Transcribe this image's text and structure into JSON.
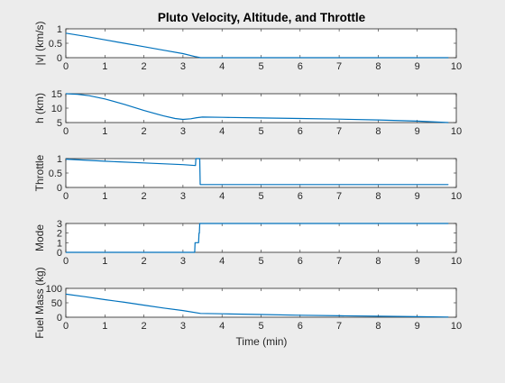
{
  "chart_data": {
    "title": "Pluto Velocity, Altitude, and Throttle",
    "xlabel": "Time (min)",
    "line_color": "#0072BD",
    "grid": false,
    "x_ticks": [
      0,
      1,
      2,
      3,
      4,
      5,
      6,
      7,
      8,
      9,
      10
    ],
    "subplots": [
      {
        "type": "line",
        "ylabel": "|v| (km/s)",
        "xlim": [
          0,
          10
        ],
        "ylim": [
          0,
          1
        ],
        "y_ticks": [
          0,
          0.5,
          1
        ],
        "y_tick_labels": [
          "0",
          "0.5",
          "1"
        ],
        "x": [
          0,
          0.5,
          1,
          1.5,
          2,
          2.5,
          3,
          3.3,
          3.45,
          4,
          5,
          6,
          7,
          8,
          9,
          9.8
        ],
        "y": [
          0.85,
          0.74,
          0.62,
          0.5,
          0.38,
          0.26,
          0.14,
          0.04,
          0.0,
          0.0,
          0.0,
          0.0,
          0.0,
          0.0,
          0.0,
          0.0
        ]
      },
      {
        "type": "line",
        "ylabel": "h (km)",
        "xlim": [
          0,
          10
        ],
        "ylim": [
          5,
          15
        ],
        "y_ticks": [
          5,
          10,
          15
        ],
        "y_tick_labels": [
          "5",
          "10",
          "15"
        ],
        "x": [
          0,
          0.3,
          0.6,
          1,
          1.5,
          2,
          2.5,
          2.8,
          3,
          3.2,
          3.35,
          3.5,
          4,
          5,
          6,
          7,
          8,
          9,
          9.8
        ],
        "y": [
          15,
          14.8,
          14.3,
          13.2,
          11.3,
          9.2,
          7.3,
          6.4,
          6.1,
          6.3,
          6.7,
          6.9,
          6.8,
          6.6,
          6.4,
          6.2,
          5.9,
          5.5,
          5.0
        ]
      },
      {
        "type": "line",
        "ylabel": "Throttle",
        "xlim": [
          0,
          10
        ],
        "ylim": [
          0,
          1
        ],
        "y_ticks": [
          0,
          0.5,
          1
        ],
        "y_tick_labels": [
          "0",
          "0.5",
          "1"
        ],
        "x": [
          0,
          1,
          2,
          3,
          3.32,
          3.33,
          3.43,
          3.44,
          4,
          5,
          6,
          7,
          8,
          9,
          9.8
        ],
        "y": [
          0.98,
          0.91,
          0.85,
          0.79,
          0.76,
          1.0,
          1.0,
          0.1,
          0.1,
          0.1,
          0.1,
          0.1,
          0.1,
          0.1,
          0.1
        ]
      },
      {
        "type": "line",
        "ylabel": "Mode",
        "xlim": [
          0,
          10
        ],
        "ylim": [
          0,
          3
        ],
        "y_ticks": [
          0,
          1,
          2,
          3
        ],
        "y_tick_labels": [
          "0",
          "1",
          "2",
          "3"
        ],
        "x": [
          0,
          3.3,
          3.31,
          3.4,
          3.41,
          3.42,
          3.43,
          4,
          6,
          8,
          9.8
        ],
        "y": [
          0,
          0,
          1,
          1,
          2,
          2,
          3,
          3,
          3,
          3,
          3
        ]
      },
      {
        "type": "line",
        "ylabel": "Fuel Mass (kg)",
        "xlim": [
          0,
          10
        ],
        "ylim": [
          0,
          100
        ],
        "y_ticks": [
          0,
          50,
          100
        ],
        "y_tick_labels": [
          "0",
          "50",
          "100"
        ],
        "x": [
          0,
          0.5,
          1,
          1.5,
          2,
          2.5,
          3,
          3.45,
          4,
          5,
          6,
          7,
          8,
          9,
          9.8
        ],
        "y": [
          80,
          71,
          61,
          52,
          42,
          32,
          23,
          13,
          12,
          9.5,
          7,
          5,
          3.5,
          2,
          0.5
        ]
      }
    ]
  }
}
